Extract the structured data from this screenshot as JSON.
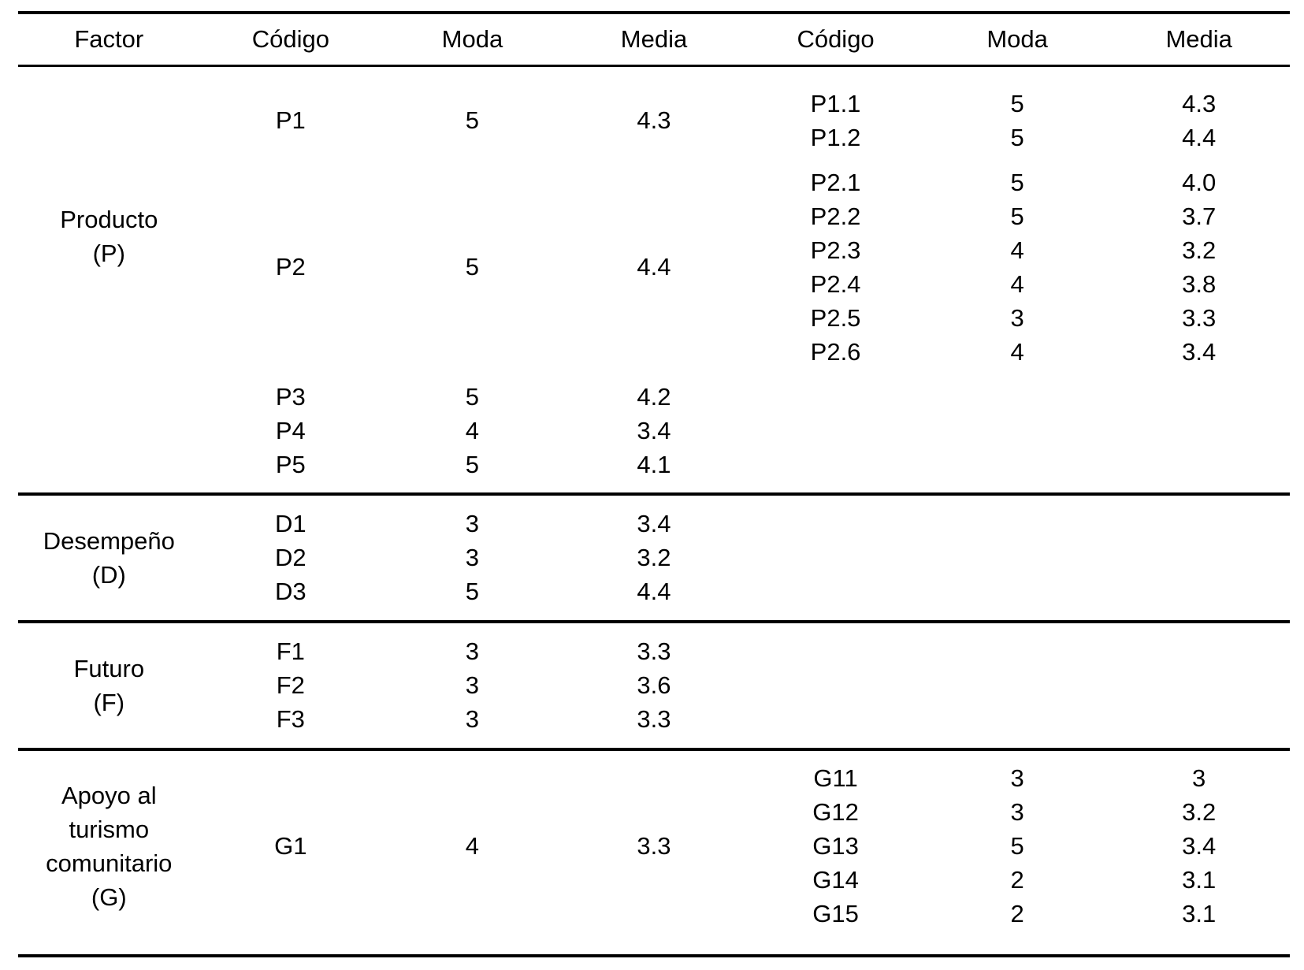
{
  "table": {
    "headers": {
      "factor": "Factor",
      "left": {
        "codigo": "Código",
        "moda": "Moda",
        "media": "Media"
      },
      "right": {
        "codigo": "Código",
        "moda": "Moda",
        "media": "Media"
      }
    },
    "sections": [
      {
        "id": "producto",
        "factor_lines": [
          "Producto",
          "(P)"
        ],
        "groups": [
          {
            "left": [
              {
                "codigo": "P1",
                "moda": "5",
                "media": "4.3"
              }
            ],
            "right": [
              {
                "codigo": "P1.1",
                "moda": "5",
                "media": "4.3"
              },
              {
                "codigo": "P1.2",
                "moda": "5",
                "media": "4.4"
              }
            ]
          },
          {
            "left": [
              {
                "codigo": "P2",
                "moda": "5",
                "media": "4.4"
              }
            ],
            "right": [
              {
                "codigo": "P2.1",
                "moda": "5",
                "media": "4.0"
              },
              {
                "codigo": "P2.2",
                "moda": "5",
                "media": "3.7"
              },
              {
                "codigo": "P2.3",
                "moda": "4",
                "media": "3.2"
              },
              {
                "codigo": "P2.4",
                "moda": "4",
                "media": "3.8"
              },
              {
                "codigo": "P2.5",
                "moda": "3",
                "media": "3.3"
              },
              {
                "codigo": "P2.6",
                "moda": "4",
                "media": "3.4"
              }
            ]
          },
          {
            "left": [
              {
                "codigo": "P3",
                "moda": "5",
                "media": "4.2"
              },
              {
                "codigo": "P4",
                "moda": "4",
                "media": "3.4"
              },
              {
                "codigo": "P5",
                "moda": "5",
                "media": "4.1"
              }
            ],
            "right": []
          }
        ]
      },
      {
        "id": "desempeno",
        "factor_lines": [
          "Desempeño",
          "(D)"
        ],
        "groups": [
          {
            "left": [
              {
                "codigo": "D1",
                "moda": "3",
                "media": "3.4"
              },
              {
                "codigo": "D2",
                "moda": "3",
                "media": "3.2"
              },
              {
                "codigo": "D3",
                "moda": "5",
                "media": "4.4"
              }
            ],
            "right": []
          }
        ]
      },
      {
        "id": "futuro",
        "factor_lines": [
          "Futuro",
          "(F)"
        ],
        "groups": [
          {
            "left": [
              {
                "codigo": "F1",
                "moda": "3",
                "media": "3.3"
              },
              {
                "codigo": "F2",
                "moda": "3",
                "media": "3.6"
              },
              {
                "codigo": "F3",
                "moda": "3",
                "media": "3.3"
              }
            ],
            "right": []
          }
        ]
      },
      {
        "id": "apoyo-turismo",
        "factor_lines": [
          "Apoyo al",
          "turismo",
          "comunitario",
          "(G)"
        ],
        "groups": [
          {
            "left": [
              {
                "codigo": "G1",
                "moda": "4",
                "media": "3.3"
              }
            ],
            "right": [
              {
                "codigo": "G11",
                "moda": "3",
                "media": "3"
              },
              {
                "codigo": "G12",
                "moda": "3",
                "media": "3.2"
              },
              {
                "codigo": "G13",
                "moda": "5",
                "media": "3.4"
              },
              {
                "codigo": "G14",
                "moda": "2",
                "media": "3.1"
              },
              {
                "codigo": "G15",
                "moda": "2",
                "media": "3.1"
              }
            ]
          }
        ]
      }
    ]
  }
}
